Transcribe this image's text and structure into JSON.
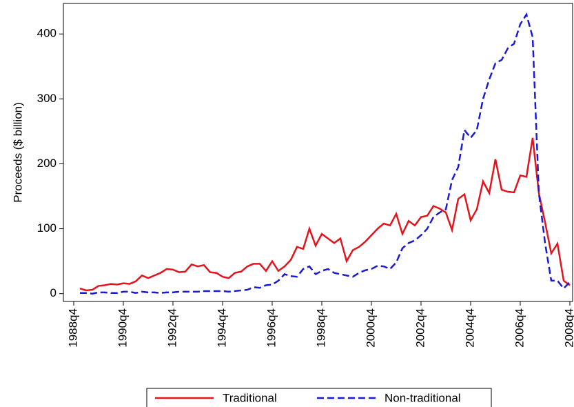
{
  "chart_data": {
    "type": "line",
    "y_label": "Proceeds ($ billion)",
    "categories": [
      "1988q4",
      null,
      null,
      null,
      null,
      null,
      null,
      null,
      "1990q4",
      null,
      null,
      null,
      null,
      null,
      null,
      null,
      "1992q4",
      null,
      null,
      null,
      null,
      null,
      null,
      null,
      "1994q4",
      null,
      null,
      null,
      null,
      null,
      null,
      null,
      "1996q4",
      null,
      null,
      null,
      null,
      null,
      null,
      null,
      "1998q4",
      null,
      null,
      null,
      null,
      null,
      null,
      null,
      "2000q4",
      null,
      null,
      null,
      null,
      null,
      null,
      null,
      "2002q4",
      null,
      null,
      null,
      null,
      null,
      null,
      null,
      "2004q4",
      null,
      null,
      null,
      null,
      null,
      null,
      null,
      "2006q4",
      null,
      null,
      null,
      null,
      null,
      null,
      null,
      "2008q4"
    ],
    "series": [
      {
        "name": "Traditional",
        "color": "#e3141c",
        "dash": false,
        "values": [
          null,
          8,
          5,
          6,
          12,
          13,
          15,
          14,
          16,
          15,
          19,
          28,
          24,
          28,
          32,
          38,
          37,
          33,
          34,
          45,
          42,
          44,
          33,
          32,
          26,
          24,
          32,
          34,
          42,
          46,
          46,
          35,
          50,
          35,
          42,
          52,
          72,
          69,
          100,
          74,
          92,
          85,
          78,
          85,
          50,
          67,
          72,
          80,
          90,
          100,
          108,
          105,
          123,
          92,
          112,
          105,
          118,
          120,
          135,
          131,
          125,
          98,
          146,
          153,
          113,
          130,
          173,
          155,
          207,
          160,
          157,
          156,
          182,
          180,
          240,
          155,
          110,
          62,
          77,
          20,
          13
        ]
      },
      {
        "name": "Non-traditional",
        "color": "#1a1ad6",
        "dash": true,
        "values": [
          null,
          1,
          1,
          0,
          2,
          2,
          1,
          1,
          3,
          3,
          1,
          3,
          2,
          2,
          1,
          2,
          2,
          3,
          3,
          3,
          3,
          4,
          4,
          4,
          4,
          3,
          4,
          5,
          6,
          10,
          9,
          13,
          14,
          20,
          30,
          27,
          26,
          38,
          42,
          30,
          35,
          38,
          32,
          30,
          28,
          26,
          32,
          36,
          38,
          43,
          42,
          38,
          48,
          70,
          78,
          82,
          90,
          100,
          118,
          125,
          130,
          175,
          195,
          252,
          240,
          252,
          300,
          330,
          355,
          360,
          378,
          385,
          415,
          430,
          395,
          155,
          78,
          20,
          20,
          8,
          18
        ]
      }
    ],
    "ylim": [
      -12,
      447
    ],
    "yticks": [
      0,
      100,
      200,
      300,
      400
    ],
    "grid": false
  }
}
